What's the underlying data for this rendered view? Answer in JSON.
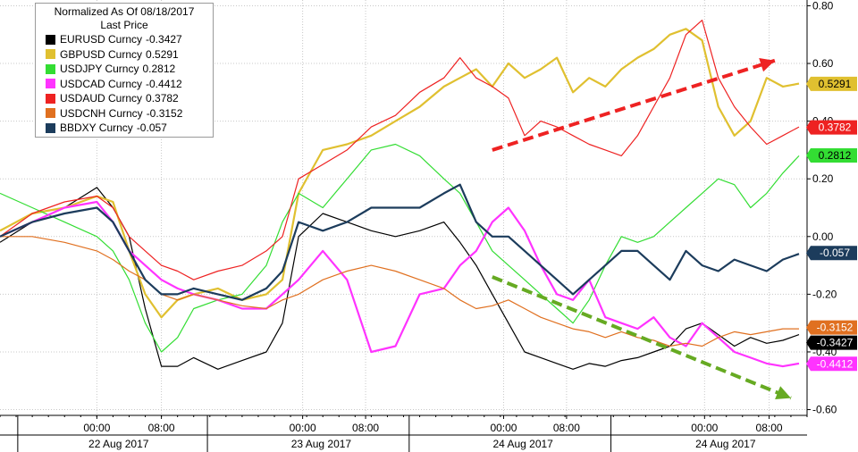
{
  "chart_data": {
    "type": "line",
    "title": "Normalized As Of 08/18/2017",
    "subtitle": "Last Price",
    "ylim": [
      -0.62,
      0.82
    ],
    "yticks": [
      0.8,
      0.6,
      0.4,
      0.2,
      0.0,
      -0.2,
      -0.4,
      -0.6
    ],
    "ytick_labels": [
      "0.80",
      "0.60",
      "0.40",
      "0.20",
      "0.00",
      "-0.20",
      "-0.40",
      "-0.60"
    ],
    "xlim": [
      0,
      100
    ],
    "xticks": [
      {
        "x": 12,
        "label": "00:00"
      },
      {
        "x": 20,
        "label": "08:00"
      },
      {
        "x": 37.5,
        "label": "00:00"
      },
      {
        "x": 45.3,
        "label": "08:00"
      },
      {
        "x": 62.4,
        "label": "00:00"
      },
      {
        "x": 70.2,
        "label": "08:00"
      },
      {
        "x": 87.3,
        "label": "00:00"
      },
      {
        "x": 95.3,
        "label": "08:00"
      }
    ],
    "date_labels": [
      {
        "x": 14.7,
        "label": "22 Aug 2017"
      },
      {
        "x": 39.8,
        "label": "23 Aug 2017"
      },
      {
        "x": 64.8,
        "label": "24 Aug 2017"
      },
      {
        "x": 89.9,
        "label": "24 Aug 2017"
      }
    ],
    "legend_placement": "top-left",
    "grid": true,
    "series": [
      {
        "name": "EURUSD Curncy",
        "last": "-0.3427",
        "color": "#000000",
        "x": [
          0,
          4,
          8,
          12,
          14,
          16,
          18,
          20,
          22,
          24,
          27,
          30,
          33,
          35,
          37,
          40,
          43,
          46,
          49,
          52,
          55,
          57,
          59,
          61,
          63,
          65,
          67,
          69,
          71,
          73,
          75,
          77,
          79,
          81,
          83,
          85,
          87,
          89,
          91,
          93,
          95,
          97,
          99
        ],
        "y": [
          -0.02,
          0.05,
          0.1,
          0.17,
          0.1,
          0.0,
          -0.25,
          -0.45,
          -0.45,
          -0.42,
          -0.46,
          -0.43,
          -0.4,
          -0.3,
          0.0,
          0.08,
          0.05,
          0.02,
          0.0,
          0.02,
          0.05,
          -0.02,
          -0.1,
          -0.2,
          -0.3,
          -0.4,
          -0.42,
          -0.44,
          -0.46,
          -0.44,
          -0.45,
          -0.43,
          -0.42,
          -0.4,
          -0.38,
          -0.32,
          -0.3,
          -0.34,
          -0.38,
          -0.35,
          -0.37,
          -0.36,
          -0.34
        ]
      },
      {
        "name": "GBPUSD Curncy",
        "last": "0.5291",
        "color": "#e0c030",
        "x": [
          0,
          4,
          8,
          12,
          14,
          16,
          18,
          20,
          22,
          24,
          27,
          30,
          33,
          35,
          37,
          40,
          43,
          46,
          49,
          52,
          55,
          57,
          59,
          61,
          63,
          65,
          67,
          69,
          71,
          73,
          75,
          77,
          79,
          81,
          83,
          85,
          87,
          89,
          91,
          93,
          95,
          97,
          99
        ],
        "y": [
          0.02,
          0.08,
          0.1,
          0.14,
          0.12,
          -0.05,
          -0.2,
          -0.28,
          -0.22,
          -0.2,
          -0.18,
          -0.22,
          -0.2,
          -0.15,
          0.15,
          0.3,
          0.32,
          0.35,
          0.4,
          0.45,
          0.52,
          0.55,
          0.58,
          0.52,
          0.6,
          0.55,
          0.58,
          0.62,
          0.5,
          0.55,
          0.52,
          0.58,
          0.62,
          0.65,
          0.7,
          0.72,
          0.68,
          0.45,
          0.35,
          0.4,
          0.55,
          0.52,
          0.53
        ]
      },
      {
        "name": "USDJPY Curncy",
        "last": "0.2812",
        "color": "#33dd33",
        "x": [
          0,
          4,
          8,
          12,
          14,
          16,
          18,
          20,
          22,
          24,
          27,
          30,
          33,
          35,
          37,
          40,
          43,
          46,
          49,
          52,
          55,
          57,
          59,
          61,
          63,
          65,
          67,
          69,
          71,
          73,
          75,
          77,
          79,
          81,
          83,
          85,
          87,
          89,
          91,
          93,
          95,
          97,
          99
        ],
        "y": [
          0.15,
          0.1,
          0.05,
          0.0,
          -0.05,
          -0.15,
          -0.3,
          -0.4,
          -0.35,
          -0.25,
          -0.22,
          -0.2,
          -0.1,
          0.05,
          0.15,
          0.1,
          0.2,
          0.3,
          0.32,
          0.28,
          0.2,
          0.15,
          0.05,
          -0.05,
          -0.1,
          -0.15,
          -0.2,
          -0.25,
          -0.3,
          -0.22,
          -0.1,
          0.0,
          -0.02,
          0.0,
          0.05,
          0.1,
          0.15,
          0.2,
          0.18,
          0.1,
          0.15,
          0.22,
          0.28
        ]
      },
      {
        "name": "USDCAD Curncy",
        "last": "-0.4412",
        "color": "#ff33ff",
        "x": [
          0,
          4,
          8,
          12,
          14,
          16,
          18,
          20,
          22,
          24,
          27,
          30,
          33,
          35,
          37,
          40,
          43,
          46,
          49,
          52,
          55,
          57,
          59,
          61,
          63,
          65,
          67,
          69,
          71,
          73,
          75,
          77,
          79,
          81,
          83,
          85,
          87,
          89,
          91,
          93,
          95,
          97,
          99
        ],
        "y": [
          0.0,
          0.05,
          0.1,
          0.12,
          0.05,
          -0.05,
          -0.1,
          -0.15,
          -0.18,
          -0.2,
          -0.22,
          -0.25,
          -0.25,
          -0.2,
          -0.15,
          -0.05,
          -0.15,
          -0.4,
          -0.38,
          -0.2,
          -0.18,
          -0.1,
          -0.05,
          0.05,
          0.1,
          0.02,
          -0.1,
          -0.2,
          -0.22,
          -0.15,
          -0.28,
          -0.3,
          -0.32,
          -0.28,
          -0.35,
          -0.38,
          -0.3,
          -0.35,
          -0.4,
          -0.42,
          -0.44,
          -0.45,
          -0.44
        ]
      },
      {
        "name": "USDAUD Curncy",
        "last": "0.3782",
        "color": "#ee2222",
        "x": [
          0,
          4,
          8,
          12,
          14,
          16,
          18,
          20,
          22,
          24,
          27,
          30,
          33,
          35,
          37,
          40,
          43,
          46,
          49,
          52,
          55,
          57,
          59,
          61,
          63,
          65,
          67,
          69,
          71,
          73,
          75,
          77,
          79,
          81,
          83,
          85,
          87,
          89,
          91,
          93,
          95,
          97,
          99
        ],
        "y": [
          0.0,
          0.08,
          0.12,
          0.14,
          0.1,
          0.0,
          -0.05,
          -0.1,
          -0.12,
          -0.15,
          -0.12,
          -0.1,
          -0.05,
          0.0,
          0.2,
          0.25,
          0.3,
          0.38,
          0.42,
          0.5,
          0.55,
          0.62,
          0.55,
          0.52,
          0.48,
          0.35,
          0.4,
          0.38,
          0.35,
          0.32,
          0.3,
          0.28,
          0.35,
          0.45,
          0.55,
          0.7,
          0.75,
          0.55,
          0.45,
          0.38,
          0.32,
          0.35,
          0.38
        ]
      },
      {
        "name": "USDCNH Curncy",
        "last": "-0.3152",
        "color": "#e07020",
        "x": [
          0,
          4,
          8,
          12,
          14,
          16,
          18,
          20,
          22,
          24,
          27,
          30,
          33,
          35,
          37,
          40,
          43,
          46,
          49,
          52,
          55,
          57,
          59,
          61,
          63,
          65,
          67,
          69,
          71,
          73,
          75,
          77,
          79,
          81,
          83,
          85,
          87,
          89,
          91,
          93,
          95,
          97,
          99
        ],
        "y": [
          0.0,
          0.0,
          -0.02,
          -0.05,
          -0.08,
          -0.12,
          -0.15,
          -0.2,
          -0.22,
          -0.2,
          -0.22,
          -0.24,
          -0.25,
          -0.22,
          -0.2,
          -0.15,
          -0.12,
          -0.1,
          -0.12,
          -0.15,
          -0.18,
          -0.22,
          -0.25,
          -0.24,
          -0.22,
          -0.25,
          -0.28,
          -0.3,
          -0.32,
          -0.33,
          -0.35,
          -0.33,
          -0.35,
          -0.36,
          -0.38,
          -0.37,
          -0.38,
          -0.35,
          -0.33,
          -0.34,
          -0.33,
          -0.32,
          -0.32
        ]
      },
      {
        "name": "BBDXY Curncy",
        "last": "-0.057",
        "color": "#1c3c5c",
        "x": [
          0,
          4,
          8,
          12,
          14,
          16,
          18,
          20,
          22,
          24,
          27,
          30,
          33,
          35,
          37,
          40,
          43,
          46,
          49,
          52,
          55,
          57,
          59,
          61,
          63,
          65,
          67,
          69,
          71,
          73,
          75,
          77,
          79,
          81,
          83,
          85,
          87,
          89,
          91,
          93,
          95,
          97,
          99
        ],
        "y": [
          0.0,
          0.05,
          0.08,
          0.1,
          0.05,
          -0.05,
          -0.15,
          -0.2,
          -0.2,
          -0.18,
          -0.2,
          -0.22,
          -0.18,
          -0.12,
          0.05,
          0.02,
          0.05,
          0.1,
          0.1,
          0.1,
          0.15,
          0.18,
          0.05,
          0.0,
          0.0,
          -0.05,
          -0.1,
          -0.15,
          -0.2,
          -0.15,
          -0.1,
          -0.05,
          -0.05,
          -0.1,
          -0.15,
          -0.05,
          -0.1,
          -0.12,
          -0.08,
          -0.1,
          -0.12,
          -0.08,
          -0.06
        ]
      }
    ],
    "annotations": [
      {
        "type": "arrow",
        "color": "#ee2222",
        "x1": 61,
        "y1": 0.3,
        "x2": 96,
        "y2": 0.61
      },
      {
        "type": "arrow",
        "color": "#66aa22",
        "x1": 61,
        "y1": -0.14,
        "x2": 98,
        "y2": -0.56
      }
    ]
  }
}
